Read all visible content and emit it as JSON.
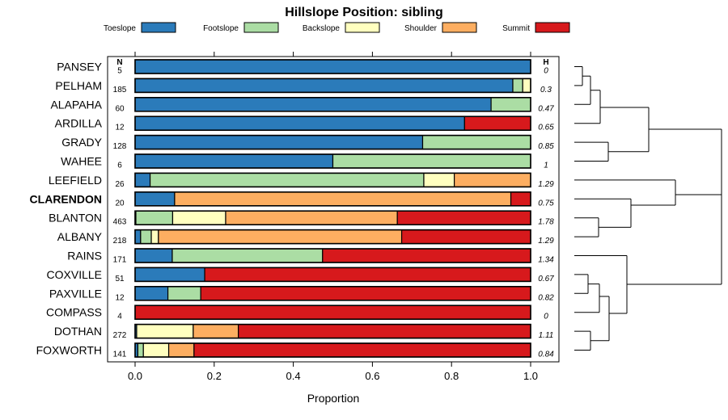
{
  "chart_data": {
    "type": "bar",
    "orientation": "horizontal-stacked",
    "title": "Hillslope Position: sibling",
    "xlabel": "Proportion",
    "ylabel": "",
    "xlim": [
      0,
      1
    ],
    "x_ticks": [
      "0.0",
      "0.2",
      "0.4",
      "0.6",
      "0.8",
      "1.0"
    ],
    "n_header": "N",
    "h_header": "H",
    "series": [
      {
        "name": "Toeslope",
        "color": "#2b7bba"
      },
      {
        "name": "Footslope",
        "color": "#abdda4"
      },
      {
        "name": "Backslope",
        "color": "#ffffbf"
      },
      {
        "name": "Shoulder",
        "color": "#fdae61"
      },
      {
        "name": "Summit",
        "color": "#d7191c"
      }
    ],
    "categories": [
      {
        "name": "PANSEY",
        "n": "5",
        "h": "0",
        "bold": false,
        "values": [
          1.0,
          0,
          0,
          0,
          0
        ]
      },
      {
        "name": "PELHAM",
        "n": "185",
        "h": "0.3",
        "bold": false,
        "values": [
          0.955,
          0.025,
          0.02,
          0,
          0
        ]
      },
      {
        "name": "ALAPAHA",
        "n": "60",
        "h": "0.47",
        "bold": false,
        "values": [
          0.9,
          0.1,
          0,
          0,
          0
        ]
      },
      {
        "name": "ARDILLA",
        "n": "12",
        "h": "0.65",
        "bold": false,
        "values": [
          0.833,
          0,
          0,
          0,
          0.167
        ]
      },
      {
        "name": "GRADY",
        "n": "128",
        "h": "0.85",
        "bold": false,
        "values": [
          0.727,
          0.273,
          0,
          0,
          0
        ]
      },
      {
        "name": "WAHEE",
        "n": "6",
        "h": "1",
        "bold": false,
        "values": [
          0.5,
          0.5,
          0,
          0,
          0
        ]
      },
      {
        "name": "LEEFIELD",
        "n": "26",
        "h": "1.29",
        "bold": false,
        "values": [
          0.038,
          0.692,
          0.077,
          0.193,
          0
        ]
      },
      {
        "name": "CLARENDON",
        "n": "20",
        "h": "0.75",
        "bold": true,
        "values": [
          0.1,
          0,
          0,
          0.85,
          0.05
        ]
      },
      {
        "name": "BLANTON",
        "n": "463",
        "h": "1.78",
        "bold": false,
        "values": [
          0.002,
          0.093,
          0.134,
          0.434,
          0.337
        ]
      },
      {
        "name": "ALBANY",
        "n": "218",
        "h": "1.29",
        "bold": false,
        "values": [
          0.014,
          0.027,
          0.018,
          0.615,
          0.326
        ]
      },
      {
        "name": "RAINS",
        "n": "171",
        "h": "1.34",
        "bold": false,
        "values": [
          0.094,
          0.38,
          0,
          0,
          0.526
        ]
      },
      {
        "name": "COXVILLE",
        "n": "51",
        "h": "0.67",
        "bold": false,
        "values": [
          0.176,
          0,
          0,
          0,
          0.824
        ]
      },
      {
        "name": "PAXVILLE",
        "n": "12",
        "h": "0.82",
        "bold": false,
        "values": [
          0.083,
          0.083,
          0,
          0,
          0.834
        ]
      },
      {
        "name": "COMPASS",
        "n": "4",
        "h": "0",
        "bold": false,
        "values": [
          0,
          0,
          0,
          0,
          1.0
        ]
      },
      {
        "name": "DOTHAN",
        "n": "272",
        "h": "1.11",
        "bold": false,
        "values": [
          0.004,
          0,
          0.143,
          0.114,
          0.739
        ]
      },
      {
        "name": "FOXWORTH",
        "n": "141",
        "h": "0.84",
        "bold": false,
        "values": [
          0.007,
          0.014,
          0.064,
          0.064,
          0.851
        ]
      }
    ],
    "legend": "top",
    "grid": false
  }
}
